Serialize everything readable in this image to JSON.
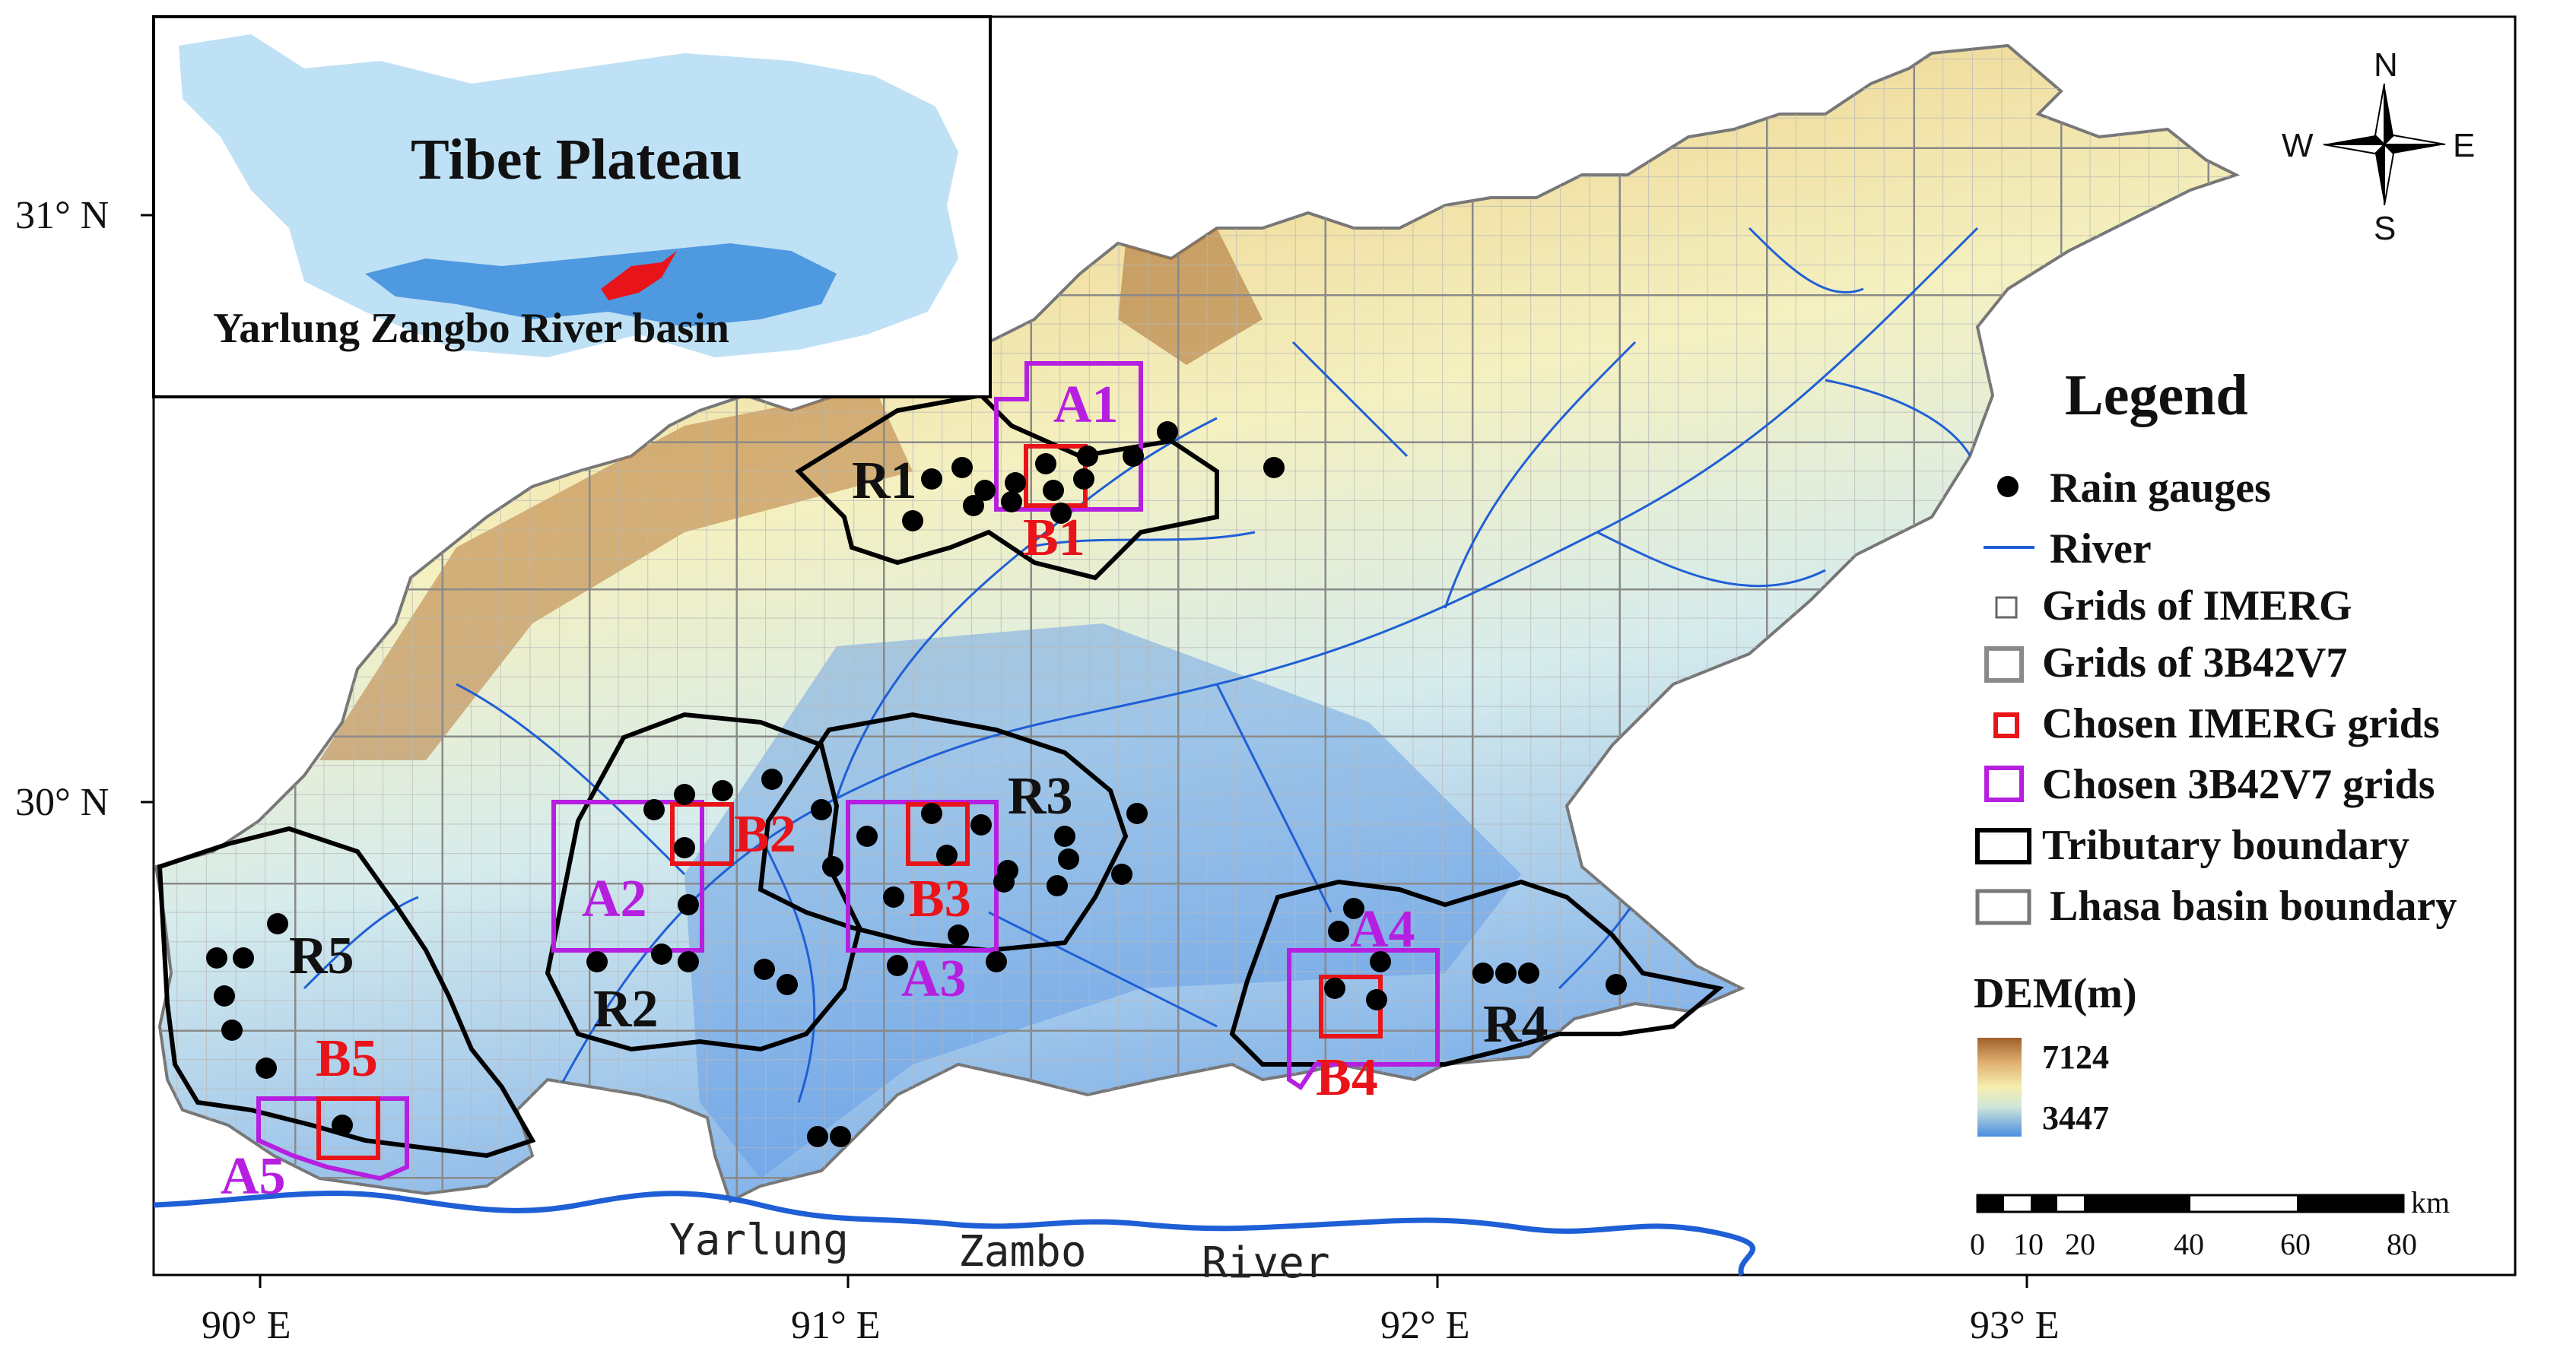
{
  "axes": {
    "lat_labels": [
      "31° N",
      "30° N"
    ],
    "lon_labels": [
      "90° E",
      "91° E",
      "92° E",
      "93° E"
    ]
  },
  "inset": {
    "title": "Tibet Plateau",
    "subtitle": "Yarlung Zangbo River basin"
  },
  "compass": {
    "n": "N",
    "s": "S",
    "e": "E",
    "w": "W"
  },
  "legend": {
    "title": "Legend",
    "items": [
      "Rain gauges",
      "River",
      "Grids of IMERG",
      "Grids of 3B42V7",
      "Chosen IMERG grids",
      "Chosen 3B42V7 grids",
      "Tributary boundary",
      "Lhasa basin boundary"
    ],
    "dem_title": "DEM(m)",
    "dem_max": "7124",
    "dem_min": "3447",
    "scale_unit": "km",
    "scale_ticks": [
      "0",
      "10",
      "20",
      "40",
      "60",
      "80"
    ]
  },
  "colors": {
    "dem_high": "#a0602a",
    "dem_mid": "#f5eeb0",
    "dem_low": "#4a8de0",
    "river": "#1f5fd6",
    "chosen_imerg": "#e8141a",
    "chosen_3b42": "#b61fe0",
    "grid_3b42": "#8a8a8a"
  },
  "regions": {
    "tributaries": [
      "R1",
      "R2",
      "R3",
      "R4",
      "R5"
    ],
    "imerg": [
      "B1",
      "B2",
      "B3",
      "B4",
      "B5"
    ],
    "trmm": [
      "A1",
      "A2",
      "A3",
      "A4",
      "A5"
    ]
  },
  "river_label": [
    "Yarlung",
    "Zambo",
    "River"
  ]
}
